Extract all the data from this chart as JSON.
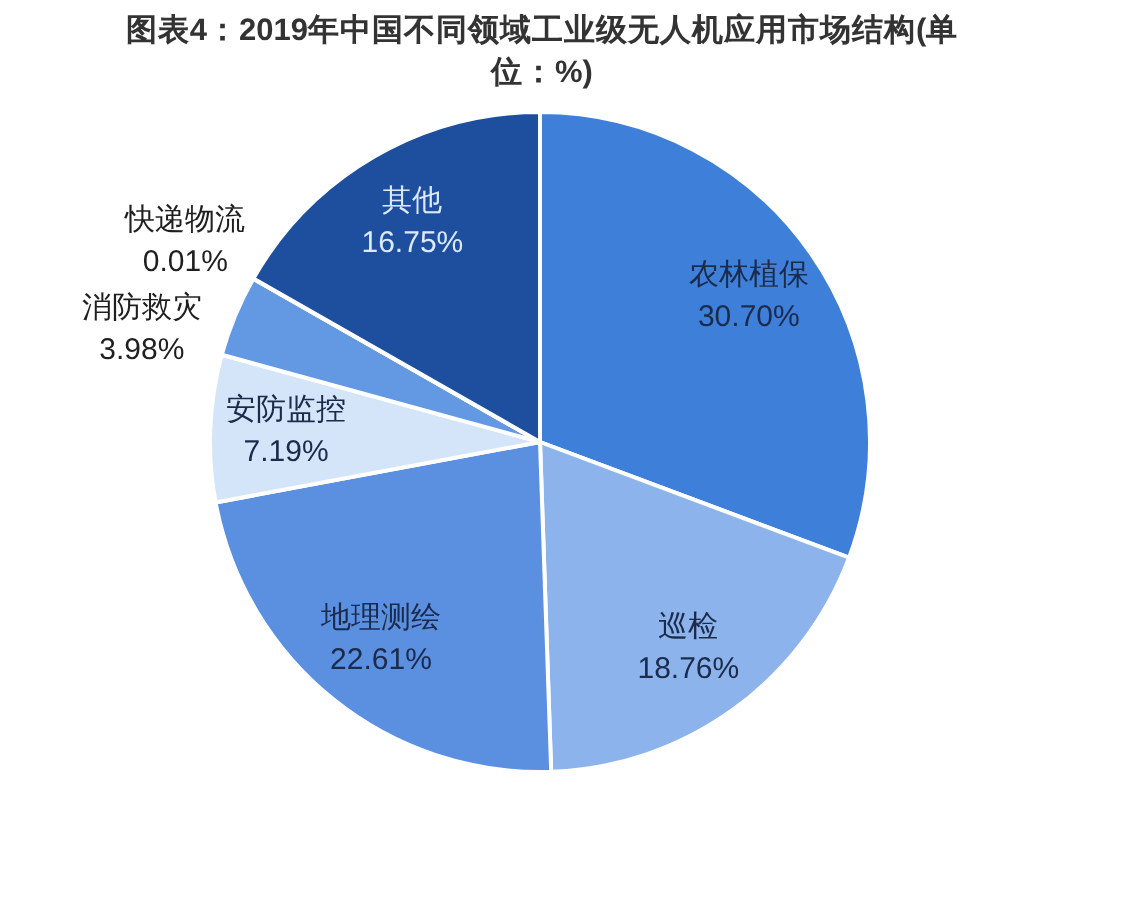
{
  "chart_data": {
    "type": "pie",
    "title": "图表4：2019年中国不同领域工业级无人机应用市场结构(单位：%)",
    "categories": [
      "农林植保",
      "巡检",
      "地理测绘",
      "安防监控",
      "消防救灾",
      "快递物流",
      "其他"
    ],
    "values": [
      30.7,
      18.76,
      22.61,
      7.19,
      3.98,
      0.01,
      16.75
    ],
    "colors": [
      "#3d7fd9",
      "#8cb3ec",
      "#5b8fdf",
      "#d5e5f9",
      "#6398e2",
      "#3a75cf",
      "#1e4f9f"
    ],
    "value_labels": [
      "30.70%",
      "18.76%",
      "22.61%",
      "7.19%",
      "3.98%",
      "0.01%",
      "16.75%"
    ]
  }
}
